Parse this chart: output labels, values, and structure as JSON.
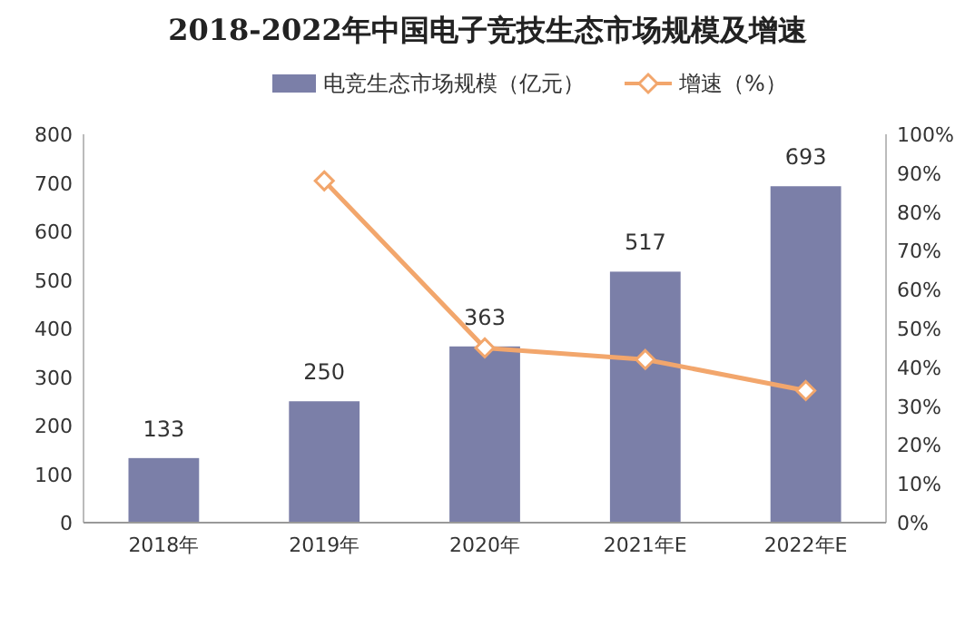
{
  "chart_data": {
    "type": "bar",
    "title": "2018-2022年中国电子竞技生态市场规模及增速",
    "categories": [
      "2018年",
      "2019年",
      "2020年",
      "2021年E",
      "2022年E"
    ],
    "series": [
      {
        "name": "电竞生态市场规模（亿元）",
        "color": "#7b7fa8",
        "values": [
          133,
          250,
          363,
          517,
          693
        ],
        "value_labels": [
          "133",
          "250",
          "363",
          "517",
          "693"
        ]
      },
      {
        "name": "增速（%）",
        "type": "line",
        "axis": "y2",
        "color": "#f2a66c",
        "marker": "diamond",
        "values": [
          null,
          88,
          45,
          42,
          34
        ]
      }
    ],
    "ylim": [
      0,
      800
    ],
    "yticks": [
      0,
      100,
      200,
      300,
      400,
      500,
      600,
      700,
      800
    ],
    "y2lim": [
      0,
      100
    ],
    "y2ticks": [
      {
        "value": 0,
        "label": "0%"
      },
      {
        "value": 10,
        "label": "10%"
      },
      {
        "value": 20,
        "label": "20%"
      },
      {
        "value": 30,
        "label": "30%"
      },
      {
        "value": 40,
        "label": "40%"
      },
      {
        "value": 50,
        "label": "50%"
      },
      {
        "value": 60,
        "label": "60%"
      },
      {
        "value": 70,
        "label": "70%"
      },
      {
        "value": 80,
        "label": "80%"
      },
      {
        "value": 90,
        "label": "90%"
      },
      {
        "value": 100,
        "label": "100%"
      }
    ],
    "legend": "top",
    "grid": false
  }
}
